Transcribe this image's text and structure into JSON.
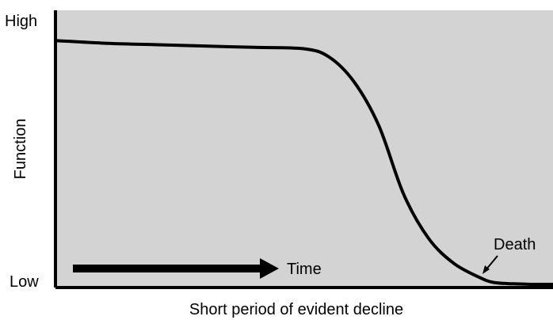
{
  "chart_data": {
    "type": "line",
    "title": "",
    "xlabel": "Short period of evident decline",
    "ylabel": "Function",
    "y_tick_labels": [
      "High",
      "Low"
    ],
    "grid": false,
    "legend": "none",
    "series": [
      {
        "x": [
          0,
          10,
          20,
          30,
          40,
          50,
          55,
          60,
          65,
          70,
          75,
          80,
          85,
          88,
          92,
          96,
          100
        ],
        "y": [
          0.89,
          0.88,
          0.875,
          0.87,
          0.865,
          0.86,
          0.83,
          0.74,
          0.58,
          0.33,
          0.17,
          0.08,
          0.03,
          0.01,
          0.005,
          0.003,
          0.003
        ]
      }
    ],
    "annotations": [
      {
        "id": "time",
        "text": "Time"
      },
      {
        "id": "death",
        "text": "Death"
      }
    ],
    "colors": {
      "plot_background": "#d3d3d3",
      "line": "#000000",
      "time_arrow": "#000000"
    }
  }
}
